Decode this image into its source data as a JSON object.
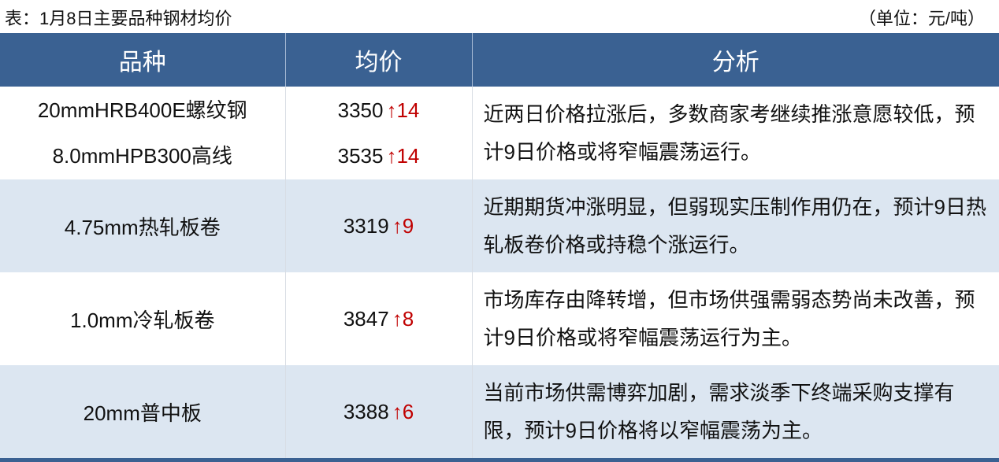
{
  "caption": "表：1月8日主要品种钢材均价",
  "unit": "（单位：元/吨）",
  "headers": [
    "品种",
    "均价",
    "分析"
  ],
  "rows": [
    {
      "products": [
        "20mmHRB400E螺纹钢",
        "8.0mmHPB300高线"
      ],
      "prices": [
        {
          "value": "3350",
          "change": "↑14"
        },
        {
          "value": "3535",
          "change": "↑14"
        }
      ],
      "analysis": "近两日价格拉涨后，多数商家考继续推涨意愿较低，预计9日价格或将窄幅震荡运行。"
    },
    {
      "products": [
        "4.75mm热轧板卷"
      ],
      "prices": [
        {
          "value": "3319",
          "change": "↑9"
        }
      ],
      "analysis": "近期期货冲涨明显，但弱现实压制作用仍在，预计9日热轧板卷价格或持稳个涨运行。"
    },
    {
      "products": [
        "1.0mm冷轧板卷"
      ],
      "prices": [
        {
          "value": "3847",
          "change": "↑8"
        }
      ],
      "analysis": "市场库存由降转增，但市场供强需弱态势尚未改善，预计9日价格或将窄幅震荡运行为主。"
    },
    {
      "products": [
        "20mm普中板"
      ],
      "prices": [
        {
          "value": "3388",
          "change": "↑6"
        }
      ],
      "analysis": "当前市场供需博弈加剧，需求淡季下终端采购支撑有限，预计9日价格将以窄幅震荡为主。"
    }
  ],
  "colors": {
    "header_bg": "#3a6192",
    "alt_row": "#dce6f1",
    "up": "#c00000"
  }
}
